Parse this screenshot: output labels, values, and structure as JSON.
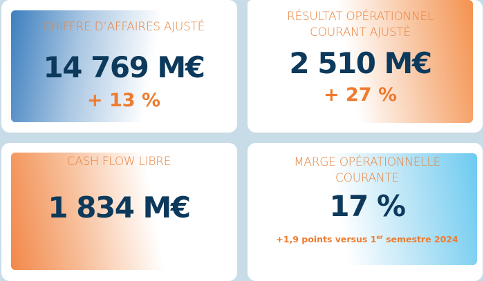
{
  "colors": {
    "background": "#c8dce8",
    "label": "#e8823c",
    "value": "#0d3a5c",
    "accent": "#ee7b2f"
  },
  "kpis": [
    {
      "label": "CHIFFRE D’AFFAIRES AJUSTÉ",
      "value": "14 769 M€",
      "change": "+ 13 %"
    },
    {
      "label_line1": "RÉSULTAT OPÉRATIONNEL",
      "label_line2": "COURANT AJUSTÉ",
      "value": "2 510 M€",
      "change": "+ 27 %"
    },
    {
      "label": "CASH FLOW LIBRE",
      "value": "1 834 M€"
    },
    {
      "label_line1": "MARGE OPÉRATIONNELLE",
      "label_line2": "COURANTE",
      "value": "17 %",
      "note_prefix": "+1,9 points versus 1",
      "note_sup": "er",
      "note_suffix": " semestre 2024"
    }
  ]
}
